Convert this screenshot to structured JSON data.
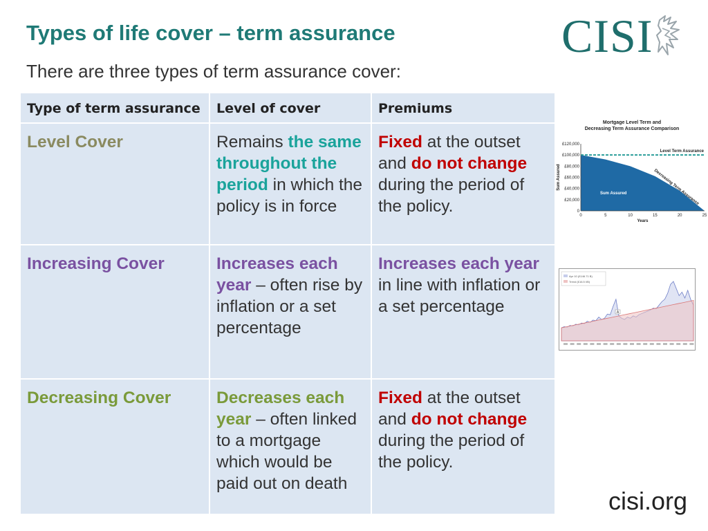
{
  "slide": {
    "title": "Types of life cover – term assurance",
    "subtitle": "There are three types of term assurance cover:",
    "logo": "CISI",
    "footer": "cisi.org"
  },
  "colors": {
    "title": "#1f7a76",
    "teal": "#1aa39b",
    "red": "#c00000",
    "purple": "#7a51a1",
    "olive": "#8a8a60",
    "green": "#7a9a3a",
    "cell": "#dce6f2"
  },
  "table": {
    "headers": [
      "Type of term assurance",
      "Level of cover",
      "Premiums"
    ],
    "rows": [
      {
        "type": "Level Cover",
        "type_color": "#8a8a60",
        "level": [
          {
            "t": "Remains ",
            "c": null
          },
          {
            "t": "the same throughout the period",
            "c": "#1aa39b"
          },
          {
            "t": " in which the policy is in force",
            "c": null
          }
        ],
        "premiums": [
          {
            "t": "Fixed",
            "c": "#c00000"
          },
          {
            "t": " at the outset and ",
            "c": null
          },
          {
            "t": "do not change",
            "c": "#c00000"
          },
          {
            "t": " during the period of the policy.",
            "c": null
          }
        ]
      },
      {
        "type": "Increasing Cover",
        "type_color": "#7a51a1",
        "level": [
          {
            "t": "Increases each year",
            "c": "#7a51a1"
          },
          {
            "t": " – often rise by inflation or a set percentage",
            "c": null
          }
        ],
        "premiums": [
          {
            "t": "Increases each year",
            "c": "#7a51a1"
          },
          {
            "t": " in line with inflation or a set percentage",
            "c": null
          }
        ]
      },
      {
        "type": "Decreasing Cover",
        "type_color": "#7a9a3a",
        "level": [
          {
            "t": "Decreases each year",
            "c": "#7a9a3a"
          },
          {
            "t": " – often linked to a mortgage which would be paid out on death",
            "c": null
          }
        ],
        "premiums": [
          {
            "t": "Fixed",
            "c": "#c00000"
          },
          {
            "t": " at the outset and ",
            "c": null
          },
          {
            "t": "do not change",
            "c": "#c00000"
          },
          {
            "t": " during the period of the policy.",
            "c": null
          }
        ]
      }
    ]
  },
  "chart_data": [
    {
      "type": "area",
      "title": "Mortgage Level Term and Decreasing Term Assurance Comparison",
      "xlabel": "Years",
      "ylabel": "Sum Assured",
      "x_ticks": [
        0,
        5,
        10,
        15,
        20,
        25
      ],
      "y_ticks": [
        "0",
        "£20,000",
        "£40,000",
        "£60,000",
        "£80,000",
        "£100,000",
        "£120,000"
      ],
      "xlim": [
        0,
        25
      ],
      "ylim": [
        0,
        120000
      ],
      "series": [
        {
          "name": "Level Term Assurance",
          "x": [
            0,
            25
          ],
          "y": [
            100000,
            100000
          ]
        },
        {
          "name": "Decreasing Term Assurance",
          "x": [
            0,
            5,
            10,
            15,
            20,
            25
          ],
          "y": [
            100000,
            92000,
            80000,
            62000,
            36000,
            0
          ]
        }
      ],
      "annotations": [
        "Sum Assured"
      ]
    },
    {
      "type": "area",
      "series": [
        {
          "name": "Apr 10 (£146.71 B)",
          "y": [
            22,
            24,
            23,
            26,
            25,
            28,
            27,
            30,
            29,
            33,
            31,
            35,
            34,
            40,
            36,
            38,
            45,
            44,
            58,
            70,
            42,
            38,
            36,
            40,
            38,
            42,
            40,
            44,
            46,
            48,
            50,
            52,
            55,
            54,
            60,
            66,
            70,
            80,
            95,
            100,
            88,
            76,
            82,
            72,
            85,
            70,
            60
          ]
        },
        {
          "name": "Trend (£16.5 I/B)",
          "y": [
            22,
            23,
            24,
            25,
            26,
            27,
            28,
            29,
            30,
            31,
            32,
            33,
            34,
            35,
            36,
            37,
            38,
            39,
            40,
            41,
            42,
            43,
            44,
            45,
            46,
            47,
            48,
            49,
            50,
            51,
            52,
            53,
            54,
            55,
            56,
            57,
            58,
            59,
            60,
            61,
            62,
            63,
            64,
            65,
            66,
            67,
            68
          ]
        }
      ],
      "annotations": [
        "A"
      ]
    }
  ]
}
